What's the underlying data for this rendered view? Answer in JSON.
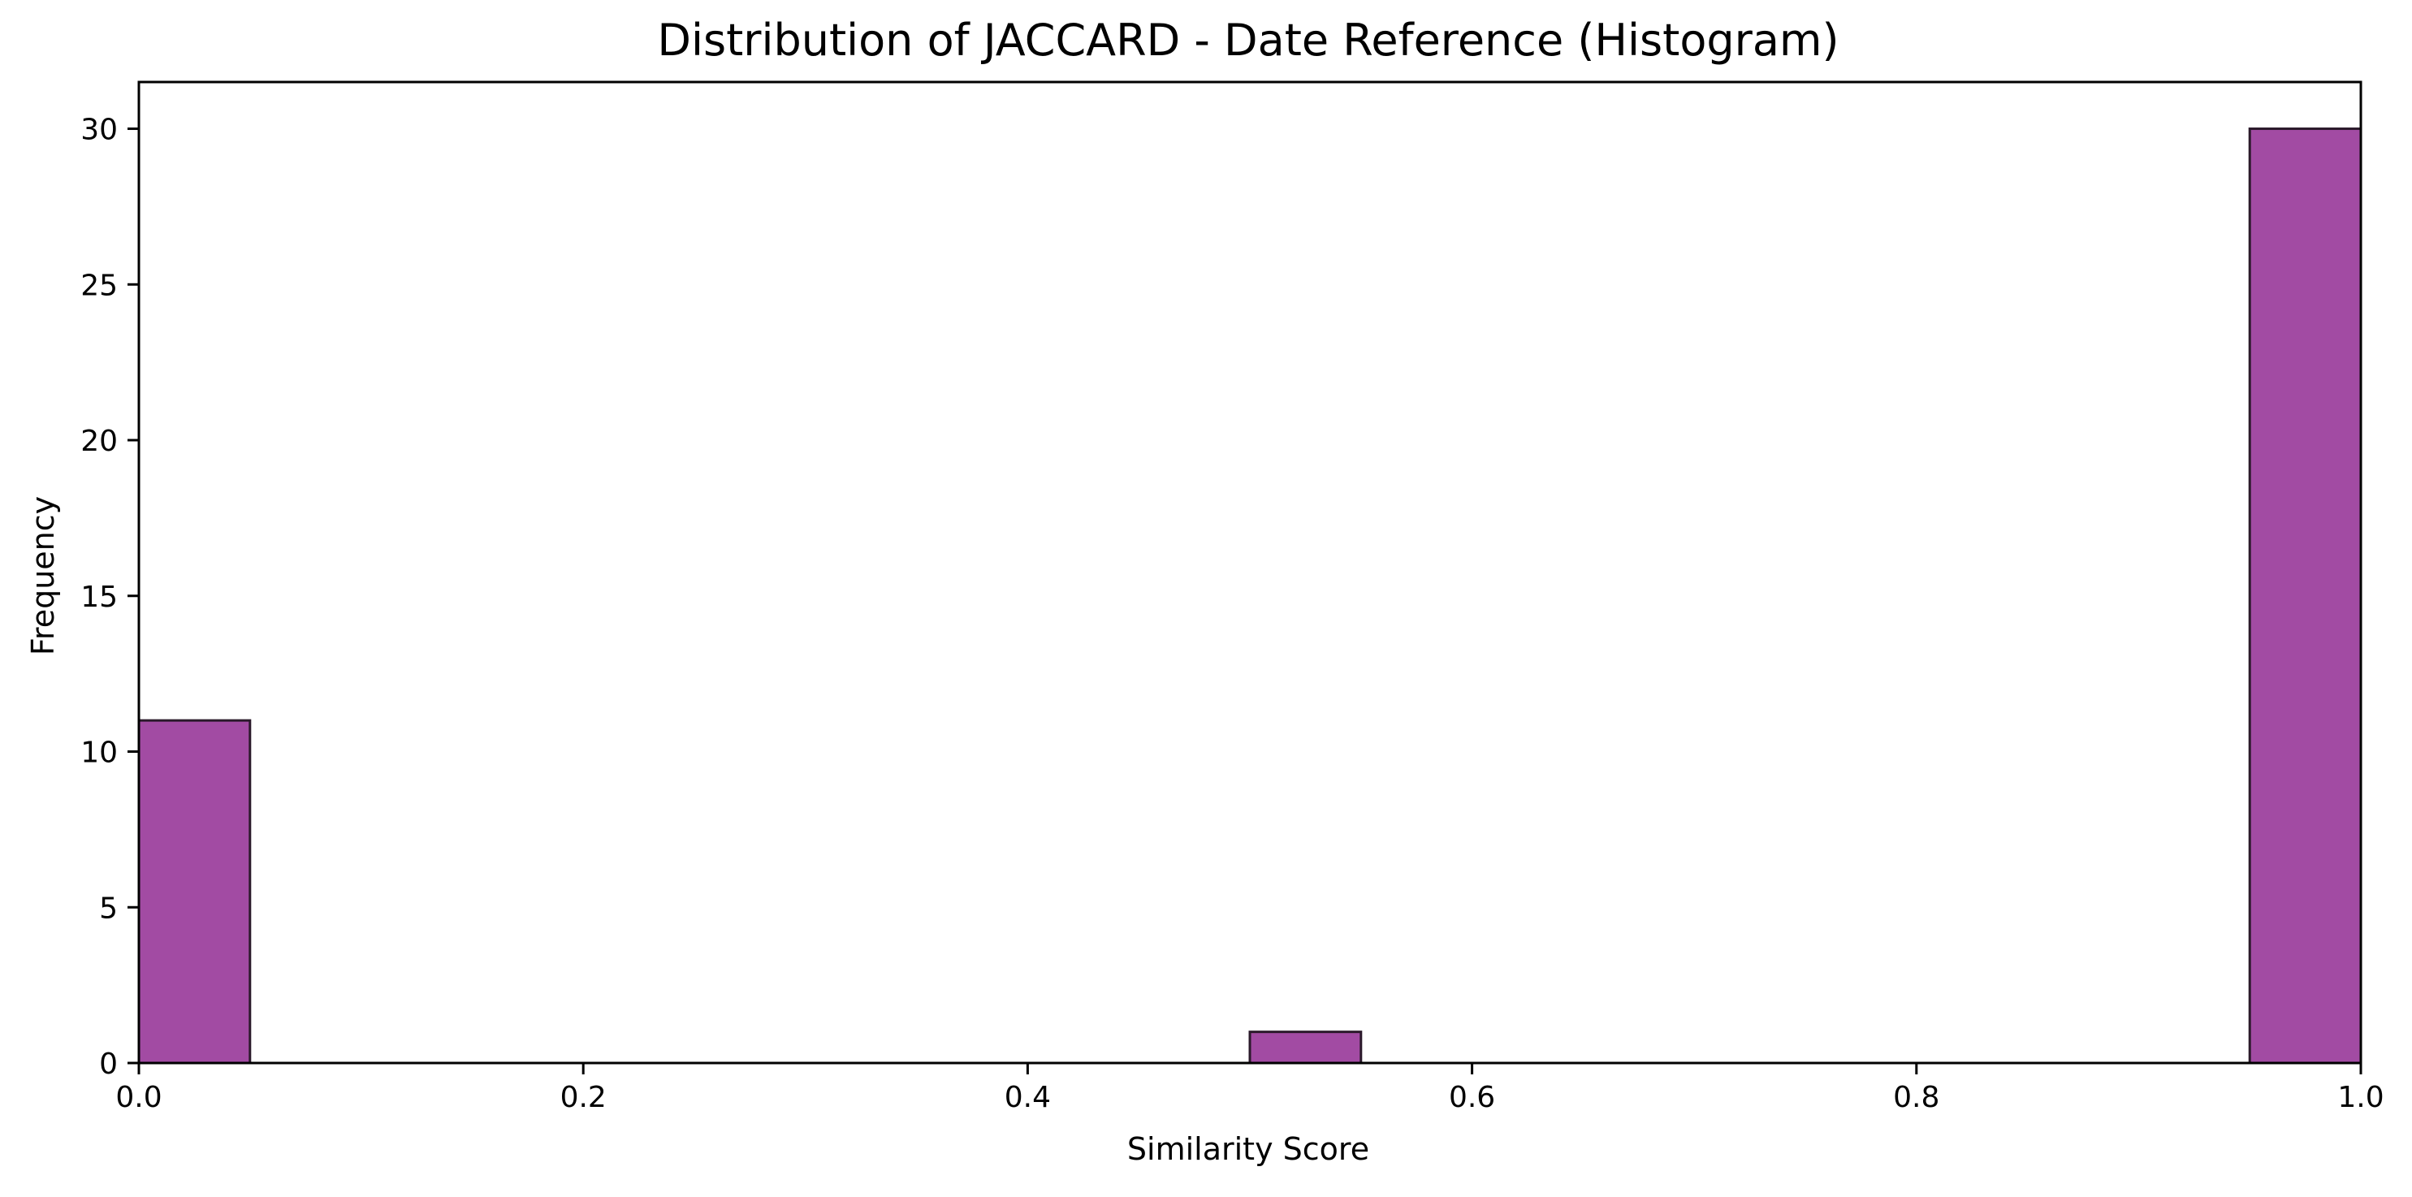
{
  "chart_data": {
    "type": "bar",
    "title": "Distribution of JACCARD - Date Reference (Histogram)",
    "xlabel": "Similarity Score",
    "ylabel": "Frequency",
    "xlim": [
      0,
      1
    ],
    "ylim": [
      0,
      31.5
    ],
    "xticks": [
      "0.0",
      "0.2",
      "0.4",
      "0.6",
      "0.8",
      "1.0"
    ],
    "xtick_values": [
      0,
      0.2,
      0.4,
      0.6,
      0.8,
      1.0
    ],
    "yticks": [
      "0",
      "5",
      "10",
      "15",
      "20",
      "25",
      "30"
    ],
    "ytick_values": [
      0,
      5,
      10,
      15,
      20,
      25,
      30
    ],
    "bins": [
      {
        "start": 0.0,
        "end": 0.05,
        "count": 11
      },
      {
        "start": 0.5,
        "end": 0.55,
        "count": 1
      },
      {
        "start": 0.95,
        "end": 1.0,
        "count": 30
      }
    ],
    "bar_color": "#a24ba3",
    "edge_color": "#2b1a2b",
    "grid": false,
    "legend": false
  }
}
